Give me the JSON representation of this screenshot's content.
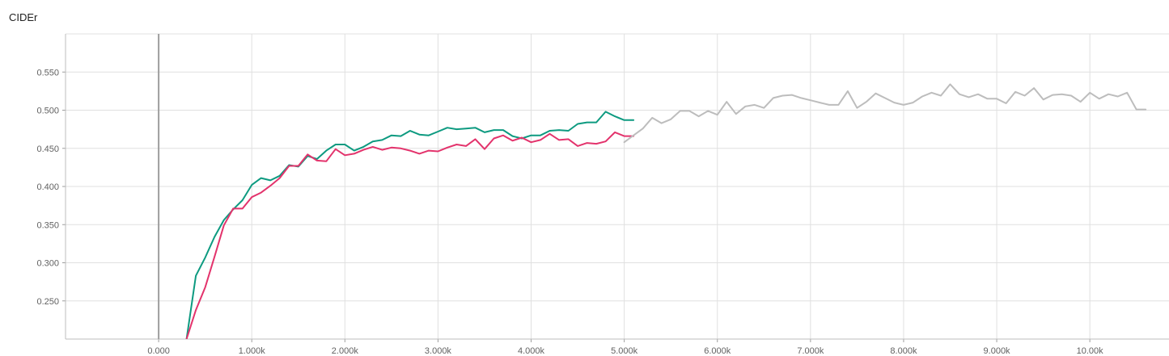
{
  "chart_data": {
    "type": "line",
    "title": "CIDEr",
    "xlabel": "",
    "ylabel": "",
    "xlim": [
      -1000,
      10850
    ],
    "ylim": [
      0.2,
      0.6
    ],
    "grid": true,
    "x_ticks": [
      0,
      1000,
      2000,
      3000,
      4000,
      5000,
      6000,
      7000,
      8000,
      9000,
      10000
    ],
    "x_tick_labels": [
      "0.000",
      "1.000k",
      "2.000k",
      "3.000k",
      "4.000k",
      "5.000k",
      "6.000k",
      "7.000k",
      "8.000k",
      "9.000k",
      "10.00k"
    ],
    "y_ticks": [
      0.25,
      0.3,
      0.35,
      0.4,
      0.45,
      0.5,
      0.55
    ],
    "y_tick_labels": [
      "0.250",
      "0.300",
      "0.350",
      "0.400",
      "0.450",
      "0.500",
      "0.550"
    ],
    "series": [
      {
        "color": "#0d9a80",
        "x": [
          300,
          400,
          500,
          600,
          700,
          800,
          900,
          1000,
          1100,
          1200,
          1300,
          1400,
          1500,
          1600,
          1700,
          1800,
          1900,
          2000,
          2100,
          2200,
          2300,
          2400,
          2500,
          2600,
          2700,
          2800,
          2900,
          3000,
          3100,
          3200,
          3300,
          3400,
          3500,
          3600,
          3700,
          3800,
          3900,
          4000,
          4100,
          4200,
          4300,
          4400,
          4500,
          4600,
          4700,
          4800,
          4900,
          5000,
          5100
        ],
        "y": [
          0.2,
          0.283,
          0.307,
          0.334,
          0.356,
          0.37,
          0.382,
          0.402,
          0.411,
          0.408,
          0.414,
          0.428,
          0.426,
          0.44,
          0.436,
          0.447,
          0.455,
          0.455,
          0.447,
          0.452,
          0.459,
          0.461,
          0.467,
          0.466,
          0.473,
          0.468,
          0.467,
          0.472,
          0.477,
          0.475,
          0.476,
          0.477,
          0.471,
          0.474,
          0.474,
          0.466,
          0.463,
          0.467,
          0.467,
          0.473,
          0.474,
          0.473,
          0.482,
          0.484,
          0.484,
          0.498,
          0.492,
          0.487,
          0.487
        ]
      },
      {
        "color": "#e3336c",
        "x": [
          300,
          400,
          500,
          600,
          700,
          800,
          900,
          1000,
          1100,
          1200,
          1300,
          1400,
          1500,
          1600,
          1700,
          1800,
          1900,
          2000,
          2100,
          2200,
          2300,
          2400,
          2500,
          2600,
          2700,
          2800,
          2900,
          3000,
          3100,
          3200,
          3300,
          3400,
          3500,
          3600,
          3700,
          3800,
          3900,
          4000,
          4100,
          4200,
          4300,
          4400,
          4500,
          4600,
          4700,
          4800,
          4900,
          5000,
          5100
        ],
        "y": [
          0.2,
          0.238,
          0.268,
          0.308,
          0.349,
          0.371,
          0.371,
          0.386,
          0.392,
          0.401,
          0.411,
          0.427,
          0.427,
          0.442,
          0.434,
          0.433,
          0.449,
          0.441,
          0.443,
          0.448,
          0.452,
          0.448,
          0.451,
          0.45,
          0.447,
          0.443,
          0.447,
          0.446,
          0.451,
          0.455,
          0.453,
          0.462,
          0.449,
          0.463,
          0.467,
          0.46,
          0.464,
          0.458,
          0.461,
          0.469,
          0.461,
          0.462,
          0.453,
          0.457,
          0.456,
          0.459,
          0.471,
          0.466,
          0.466
        ]
      },
      {
        "color": "#bdbdbd",
        "x": [
          5000,
          5100,
          5200,
          5300,
          5400,
          5500,
          5600,
          5700,
          5800,
          5900,
          6000,
          6100,
          6200,
          6300,
          6400,
          6500,
          6600,
          6700,
          6800,
          6900,
          7000,
          7100,
          7200,
          7300,
          7400,
          7500,
          7600,
          7700,
          7800,
          7900,
          8000,
          8100,
          8200,
          8300,
          8400,
          8500,
          8600,
          8700,
          8800,
          8900,
          9000,
          9100,
          9200,
          9300,
          9400,
          9500,
          9600,
          9700,
          9800,
          9900,
          10000,
          10100,
          10200,
          10300,
          10400,
          10500,
          10600
        ],
        "y": [
          0.458,
          0.467,
          0.476,
          0.49,
          0.483,
          0.488,
          0.499,
          0.499,
          0.492,
          0.499,
          0.494,
          0.511,
          0.495,
          0.505,
          0.507,
          0.503,
          0.516,
          0.519,
          0.52,
          0.516,
          0.513,
          0.51,
          0.507,
          0.507,
          0.525,
          0.503,
          0.511,
          0.522,
          0.516,
          0.51,
          0.507,
          0.51,
          0.518,
          0.523,
          0.519,
          0.534,
          0.521,
          0.517,
          0.521,
          0.515,
          0.515,
          0.509,
          0.524,
          0.519,
          0.529,
          0.514,
          0.52,
          0.521,
          0.519,
          0.511,
          0.523,
          0.515,
          0.521,
          0.518,
          0.523,
          0.501,
          0.501
        ]
      }
    ]
  }
}
